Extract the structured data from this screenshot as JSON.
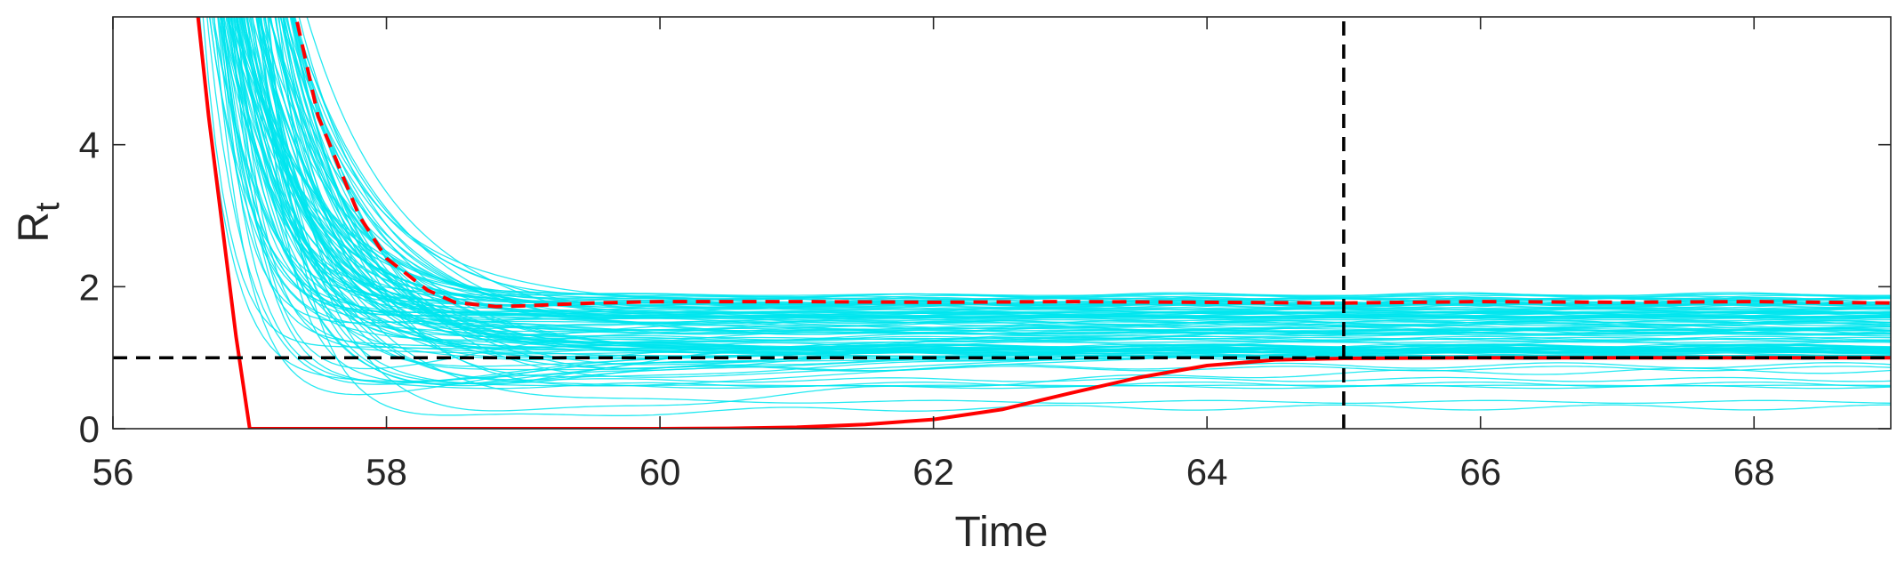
{
  "chart_data": {
    "type": "line",
    "title": "",
    "xlabel": "Time",
    "ylabel": "R",
    "ylabel_subscript": "t",
    "xlim": [
      56,
      69
    ],
    "ylim": [
      0,
      5.8
    ],
    "xticks": [
      56,
      58,
      60,
      62,
      64,
      66,
      68
    ],
    "xtick_labels": [
      "56",
      "58",
      "60",
      "62",
      "64",
      "66",
      "68"
    ],
    "yticks": [
      0,
      2,
      4
    ],
    "ytick_labels": [
      "0",
      "2",
      "4"
    ],
    "grid": false,
    "legend": "none",
    "colors": {
      "ensemble": "#00E5EE",
      "red": "#FF0000",
      "reference": "#000000"
    },
    "series": [
      {
        "style": "red-solid",
        "x": [
          56.5,
          56.7,
          56.9,
          57.0,
          58,
          59,
          60,
          60.5,
          61,
          61.5,
          62,
          62.5,
          63,
          63.5,
          64,
          64.5,
          65,
          66,
          67,
          68,
          69
        ],
        "y": [
          8.0,
          4.4,
          1.3,
          0.0,
          0.0,
          0.0,
          0.0,
          0.005,
          0.02,
          0.06,
          0.13,
          0.27,
          0.5,
          0.72,
          0.89,
          0.97,
          0.99,
          1.0,
          1.0,
          1.0,
          1.0
        ]
      },
      {
        "style": "red-dashed",
        "x": [
          57.2,
          57.5,
          57.8,
          58.0,
          58.3,
          58.5,
          58.8,
          59.0,
          59.5,
          60,
          61,
          62,
          63,
          64,
          65,
          66,
          67,
          68,
          69
        ],
        "y": [
          7.0,
          4.4,
          3.0,
          2.4,
          1.95,
          1.78,
          1.72,
          1.73,
          1.77,
          1.79,
          1.79,
          1.78,
          1.79,
          1.78,
          1.77,
          1.79,
          1.78,
          1.79,
          1.77
        ]
      },
      {
        "style": "black-dashed-horizontal",
        "x": [
          56,
          69
        ],
        "y": [
          1,
          1
        ]
      },
      {
        "style": "black-dashed-vertical",
        "x": [
          65,
          65
        ],
        "y": [
          0,
          5.8
        ]
      }
    ],
    "ensemble_description_count": 120
  }
}
